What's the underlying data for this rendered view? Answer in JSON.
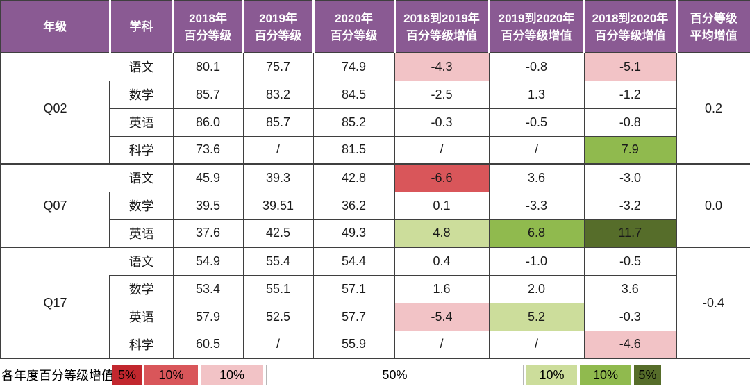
{
  "colors": {
    "headerPurple": "#8a5a93",
    "pink": "#f2c3c6",
    "red": "#d9565a",
    "darkRed": "#c2272e",
    "lightGreen": "#ccdd9b",
    "midGreen": "#90ba4e",
    "darkGreen": "#566d2a",
    "border": "#3f3f3f",
    "white": "#ffffff"
  },
  "table": {
    "headers": [
      {
        "line1": "年级",
        "line2": ""
      },
      {
        "line1": "学科",
        "line2": ""
      },
      {
        "line1": "2018年",
        "line2": "百分等级"
      },
      {
        "line1": "2019年",
        "line2": "百分等级"
      },
      {
        "line1": "2020年",
        "line2": "百分等级"
      },
      {
        "line1": "2018到2019年",
        "line2": "百分等级增值"
      },
      {
        "line1": "2019到2020年",
        "line2": "百分等级增值"
      },
      {
        "line1": "2018到2020年",
        "line2": "百分等级增值"
      },
      {
        "line1": "百分等级",
        "line2": "平均增值"
      }
    ],
    "groups": [
      {
        "grade": "Q02",
        "avg": "0.2",
        "rows": [
          {
            "subject": "语文",
            "y2018": "80.1",
            "y2019": "75.7",
            "y2020": "74.9",
            "d1819": {
              "v": "-4.3",
              "bg": "pink"
            },
            "d1920": {
              "v": "-0.8"
            },
            "d1820": {
              "v": "-5.1",
              "bg": "pink"
            }
          },
          {
            "subject": "数学",
            "y2018": "85.7",
            "y2019": "83.2",
            "y2020": "84.5",
            "d1819": {
              "v": "-2.5"
            },
            "d1920": {
              "v": "1.3"
            },
            "d1820": {
              "v": "-1.2"
            }
          },
          {
            "subject": "英语",
            "y2018": "86.0",
            "y2019": "85.7",
            "y2020": "85.2",
            "d1819": {
              "v": "-0.3"
            },
            "d1920": {
              "v": "-0.5"
            },
            "d1820": {
              "v": "-0.8"
            }
          },
          {
            "subject": "科学",
            "y2018": "73.6",
            "y2019": "/",
            "y2020": "81.5",
            "d1819": {
              "v": "/"
            },
            "d1920": {
              "v": "/"
            },
            "d1820": {
              "v": "7.9",
              "bg": "midGreen"
            }
          }
        ]
      },
      {
        "grade": "Q07",
        "avg": "0.0",
        "rows": [
          {
            "subject": "语文",
            "y2018": "45.9",
            "y2019": "39.3",
            "y2020": "42.8",
            "d1819": {
              "v": "-6.6",
              "bg": "red"
            },
            "d1920": {
              "v": "3.6"
            },
            "d1820": {
              "v": "-3.0"
            }
          },
          {
            "subject": "数学",
            "y2018": "39.5",
            "y2019": "39.51",
            "y2020": "36.2",
            "d1819": {
              "v": "0.1"
            },
            "d1920": {
              "v": "-3.3"
            },
            "d1820": {
              "v": "-3.2"
            }
          },
          {
            "subject": "英语",
            "y2018": "37.6",
            "y2019": "42.5",
            "y2020": "49.3",
            "d1819": {
              "v": "4.8",
              "bg": "lightGreen"
            },
            "d1920": {
              "v": "6.8",
              "bg": "midGreen"
            },
            "d1820": {
              "v": "11.7",
              "bg": "darkGreen"
            }
          }
        ]
      },
      {
        "grade": "Q17",
        "avg": "-0.4",
        "rows": [
          {
            "subject": "语文",
            "y2018": "54.9",
            "y2019": "55.4",
            "y2020": "54.4",
            "d1819": {
              "v": "0.4"
            },
            "d1920": {
              "v": "-1.0"
            },
            "d1820": {
              "v": "-0.5"
            }
          },
          {
            "subject": "数学",
            "y2018": "53.4",
            "y2019": "55.1",
            "y2020": "57.1",
            "d1819": {
              "v": "1.6"
            },
            "d1920": {
              "v": "2.0"
            },
            "d1820": {
              "v": "3.6"
            }
          },
          {
            "subject": "英语",
            "y2018": "57.9",
            "y2019": "52.5",
            "y2020": "57.7",
            "d1819": {
              "v": "-5.4",
              "bg": "pink"
            },
            "d1920": {
              "v": "5.2",
              "bg": "lightGreen"
            },
            "d1820": {
              "v": "-0.3"
            }
          },
          {
            "subject": "科学",
            "y2018": "60.5",
            "y2019": "/",
            "y2020": "55.9",
            "d1819": {
              "v": "/"
            },
            "d1920": {
              "v": "/"
            },
            "d1820": {
              "v": "-4.6",
              "bg": "pink"
            }
          }
        ]
      }
    ]
  },
  "legend": {
    "label": "各年度百分等级增值",
    "items": [
      {
        "label": "5%",
        "bg": "darkRed"
      },
      {
        "label": "10%",
        "bg": "red"
      },
      {
        "label": "10%",
        "bg": "pink"
      },
      {
        "label": "50%",
        "bg": "white"
      },
      {
        "label": "10%",
        "bg": "lightGreen"
      },
      {
        "label": "10%",
        "bg": "midGreen"
      },
      {
        "label": "5%",
        "bg": "darkGreen"
      }
    ]
  },
  "chart_data": {
    "type": "table",
    "title": "百分等级增值表",
    "columns": [
      "年级",
      "学科",
      "2018年百分等级",
      "2019年百分等级",
      "2020年百分等级",
      "2018到2019年百分等级增值",
      "2019到2020年百分等级增值",
      "2018到2020年百分等级增值",
      "百分等级平均增值"
    ],
    "rows": [
      [
        "Q02",
        "语文",
        80.1,
        75.7,
        74.9,
        -4.3,
        -0.8,
        -5.1,
        0.2
      ],
      [
        "Q02",
        "数学",
        85.7,
        83.2,
        84.5,
        -2.5,
        1.3,
        -1.2,
        0.2
      ],
      [
        "Q02",
        "英语",
        86.0,
        85.7,
        85.2,
        -0.3,
        -0.5,
        -0.8,
        0.2
      ],
      [
        "Q02",
        "科学",
        73.6,
        "/",
        81.5,
        "/",
        "/",
        7.9,
        0.2
      ],
      [
        "Q07",
        "语文",
        45.9,
        39.3,
        42.8,
        -6.6,
        3.6,
        -3.0,
        0.0
      ],
      [
        "Q07",
        "数学",
        39.5,
        39.51,
        36.2,
        0.1,
        -3.3,
        -3.2,
        0.0
      ],
      [
        "Q07",
        "英语",
        37.6,
        42.5,
        49.3,
        4.8,
        6.8,
        11.7,
        0.0
      ],
      [
        "Q17",
        "语文",
        54.9,
        55.4,
        54.4,
        0.4,
        -1.0,
        -0.5,
        -0.4
      ],
      [
        "Q17",
        "数学",
        53.4,
        55.1,
        57.1,
        1.6,
        2.0,
        3.6,
        -0.4
      ],
      [
        "Q17",
        "英语",
        57.9,
        52.5,
        57.7,
        -5.4,
        5.2,
        -0.3,
        -0.4
      ],
      [
        "Q17",
        "科学",
        60.5,
        "/",
        55.9,
        "/",
        "/",
        -4.6,
        -0.4
      ]
    ],
    "legend_bins": [
      {
        "share": "5%",
        "color": "#c2272e"
      },
      {
        "share": "10%",
        "color": "#d9565a"
      },
      {
        "share": "10%",
        "color": "#f2c3c6"
      },
      {
        "share": "50%",
        "color": "#ffffff"
      },
      {
        "share": "10%",
        "color": "#ccdd9b"
      },
      {
        "share": "10%",
        "color": "#90ba4e"
      },
      {
        "share": "5%",
        "color": "#566d2a"
      }
    ],
    "legend_label": "各年度百分等级增值"
  }
}
